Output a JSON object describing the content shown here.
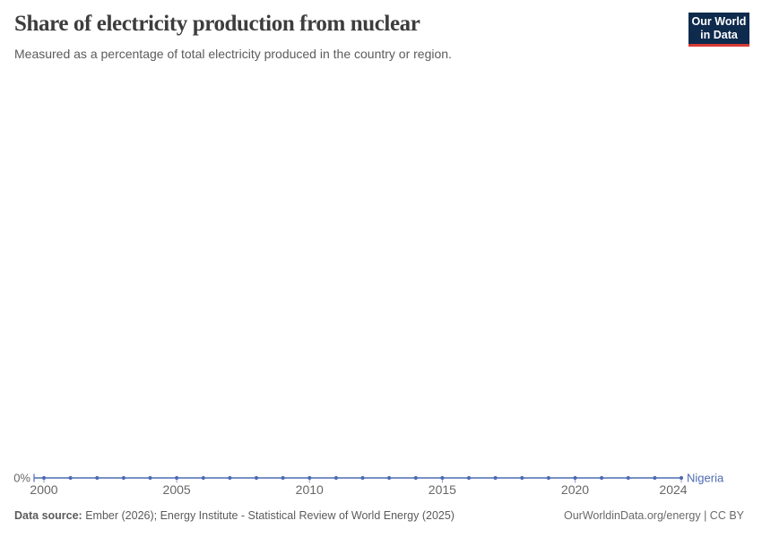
{
  "header": {
    "title": "Share of electricity production from nuclear",
    "subtitle": "Measured as a percentage of total electricity produced in the country or region.",
    "logo": {
      "line1": "Our World",
      "line2": "in Data",
      "bg_color": "#0E2A4D",
      "accent_color": "#D93A34"
    }
  },
  "chart_data": {
    "type": "line",
    "title": "Share of electricity production from nuclear",
    "subtitle": "Measured as a percentage of total electricity produced in the country or region.",
    "xlabel": "",
    "ylabel": "",
    "unit": "%",
    "x": [
      2000,
      2001,
      2002,
      2003,
      2004,
      2005,
      2006,
      2007,
      2008,
      2009,
      2010,
      2011,
      2012,
      2013,
      2014,
      2015,
      2016,
      2017,
      2018,
      2019,
      2020,
      2021,
      2022,
      2023,
      2024
    ],
    "series": [
      {
        "name": "Nigeria",
        "color": "#4D6BB3",
        "values": [
          0,
          0,
          0,
          0,
          0,
          0,
          0,
          0,
          0,
          0,
          0,
          0,
          0,
          0,
          0,
          0,
          0,
          0,
          0,
          0,
          0,
          0,
          0,
          0,
          0
        ]
      }
    ],
    "x_ticks": [
      2000,
      2005,
      2010,
      2015,
      2020,
      2024
    ],
    "y_ticks": [
      "0%"
    ],
    "xlim": [
      2000,
      2024
    ],
    "ylim": [
      0,
      0
    ],
    "grid": false,
    "legend_position": "end-of-line",
    "marker": "dot-every-year"
  },
  "axis_colors": {
    "tick_label": "#676767",
    "tick_mark": "#93a2c2"
  },
  "footer": {
    "source_label": "Data source:",
    "source_text": "Ember (2026); Energy Institute - Statistical Review of World Energy (2025)",
    "right_text": "OurWorldinData.org/energy | CC BY"
  }
}
